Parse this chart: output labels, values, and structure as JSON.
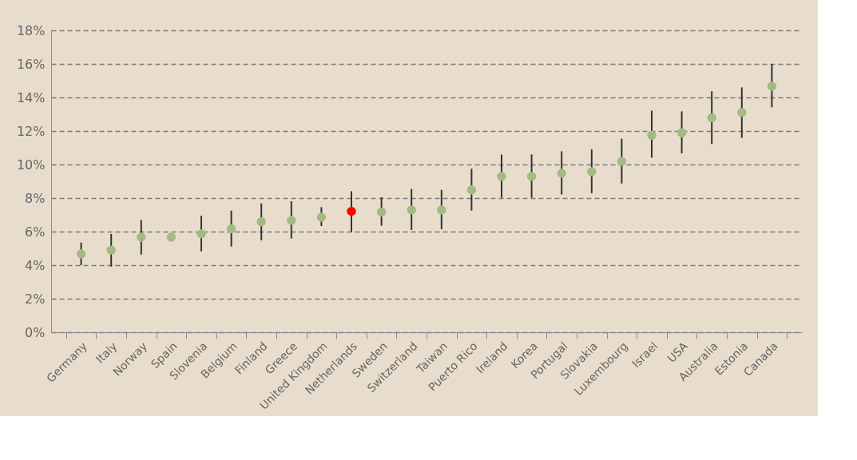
{
  "chart_data": {
    "type": "scatter",
    "categories": [
      "Germany",
      "Italy",
      "Norway",
      "Spain",
      "Slovenia",
      "Belgium",
      "Finland",
      "Greece",
      "United Kingdom",
      "Netherlands",
      "Sweden",
      "Switzerland",
      "Taiwan",
      "Puerto Rico",
      "Ireland",
      "Korea",
      "Portugal",
      "Slovakia",
      "Luxembourg",
      "Israel",
      "USA",
      "Australia",
      "Estonia",
      "Canada"
    ],
    "values": [
      4.67,
      4.9,
      5.67,
      5.67,
      5.87,
      6.17,
      6.59,
      6.67,
      6.86,
      7.21,
      7.17,
      7.29,
      7.29,
      8.49,
      9.29,
      9.29,
      9.48,
      9.57,
      10.19,
      11.75,
      11.89,
      12.79,
      13.1,
      14.67
    ],
    "errors": [
      [
        4.0,
        5.35
      ],
      [
        3.92,
        5.86
      ],
      [
        4.63,
        6.7
      ],
      null,
      [
        4.82,
        6.94
      ],
      [
        5.11,
        7.25
      ],
      [
        5.48,
        7.68
      ],
      [
        5.59,
        7.81
      ],
      [
        6.33,
        7.46
      ],
      [
        5.98,
        8.41
      ],
      [
        6.35,
        8.05
      ],
      [
        6.1,
        8.54
      ],
      [
        6.14,
        8.49
      ],
      [
        7.25,
        9.75
      ],
      [
        8.02,
        10.6
      ],
      [
        8.02,
        10.6
      ],
      [
        8.21,
        10.79
      ],
      [
        8.29,
        10.9
      ],
      [
        8.87,
        11.54
      ],
      [
        10.4,
        13.22
      ],
      [
        10.67,
        13.17
      ],
      [
        11.22,
        14.37
      ],
      [
        11.59,
        14.6
      ],
      [
        13.41,
        16.0
      ]
    ],
    "colors": [
      "#a2bb80",
      "#a2bb80",
      "#a2bb80",
      "#a2bb80",
      "#a2bb80",
      "#a2bb80",
      "#a2bb80",
      "#a2bb80",
      "#a2bb80",
      "#ff0000",
      "#a2bb80",
      "#a2bb80",
      "#a2bb80",
      "#a2bb80",
      "#a2bb80",
      "#a2bb80",
      "#a2bb80",
      "#a2bb80",
      "#a2bb80",
      "#a2bb80",
      "#a2bb80",
      "#a2bb80",
      "#a2bb80",
      "#a2bb80"
    ],
    "ylim": [
      0,
      18
    ],
    "yticks": [
      {
        "value": 0,
        "label": "0%"
      },
      {
        "value": 2,
        "label": "2%"
      },
      {
        "value": 4,
        "label": "4%"
      },
      {
        "value": 6,
        "label": "6%"
      },
      {
        "value": 8,
        "label": "8%"
      },
      {
        "value": 10,
        "label": "10%"
      },
      {
        "value": 12,
        "label": "12%"
      },
      {
        "value": 14,
        "label": "14%"
      },
      {
        "value": 16,
        "label": "16%"
      },
      {
        "value": 18,
        "label": "18%"
      }
    ],
    "grid": "y",
    "marker": "circle"
  }
}
